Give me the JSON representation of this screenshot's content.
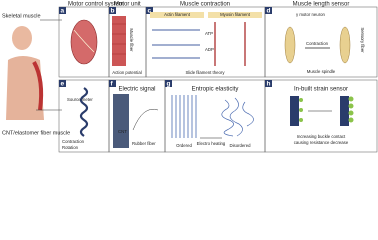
{
  "left": {
    "top_label": "Skeletal muscle",
    "bottom_label": "CNT/elastomer fiber muscle"
  },
  "panels": [
    {
      "letter": "a",
      "title": "Motor control system",
      "labels": []
    },
    {
      "letter": "b",
      "title": "Motor unit",
      "labels": [
        "Muscle fiber",
        "Action potential"
      ]
    },
    {
      "letter": "c",
      "title": "Muscle contraction",
      "labels": [
        "Actin filament",
        "Myosin filament",
        "ATP",
        "ADP",
        "Slide filament theory"
      ]
    },
    {
      "letter": "d",
      "title": "Muscle length sensor",
      "labels": [
        "γ motor neuron",
        "Contraction",
        "Sensory fiber",
        "Muscle spindle"
      ]
    },
    {
      "letter": "e",
      "title": "",
      "labels": [
        "Source meter",
        "Contraction",
        "Rotation"
      ]
    },
    {
      "letter": "f",
      "title": "Electric signal",
      "labels": [
        "CNT",
        "Rubber fiber"
      ]
    },
    {
      "letter": "g",
      "title": "Entropic elasticity",
      "labels": [
        "Ordered",
        "Electro heating",
        "Disordered"
      ]
    },
    {
      "letter": "h",
      "title": "In-built strain sensor",
      "labels": [
        "Increasing buckle contact",
        "causing resistance decrease"
      ]
    }
  ]
}
